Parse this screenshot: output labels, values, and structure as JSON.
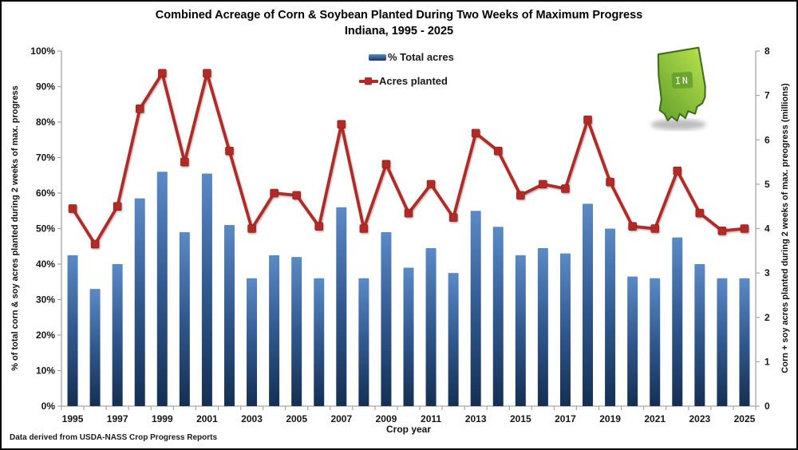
{
  "title": {
    "line1": "Combined Acreage of Corn & Soybean Planted During Two Weeks of Maximum Progress",
    "line2": "Indiana, 1995 - 2025"
  },
  "legend": {
    "bar_label": "% Total acres",
    "line_label": "Acres planted"
  },
  "footer": {
    "source_note": "Data derived from USDA-NASS Crop Progress Reports"
  },
  "state_icon": {
    "label": "IN",
    "fill_light": "#b9e24e",
    "fill_dark": "#66a42d",
    "outline": "#3f701d"
  },
  "chart_data": {
    "type": "bar+line",
    "title": "Combined Acreage of Corn & Soybean Planted During Two Weeks of Maximum Progress — Indiana, 1995 - 2025",
    "xlabel": "Crop year",
    "ylabel_left": "% of total corn & soy acres planted during 2 weeks of max. progress",
    "ylabel_right": "Corn + soy acres planted during 2 weeks of max. preogress (millions)",
    "categories": [
      1995,
      1996,
      1997,
      1998,
      1999,
      2000,
      2001,
      2002,
      2003,
      2004,
      2005,
      2006,
      2007,
      2008,
      2009,
      2010,
      2011,
      2012,
      2013,
      2014,
      2015,
      2016,
      2017,
      2018,
      2019,
      2020,
      2021,
      2022,
      2023,
      2024,
      2025
    ],
    "series": [
      {
        "name": "% Total acres",
        "type": "bar",
        "axis": "left",
        "unit": "percent",
        "values": [
          42.5,
          33,
          40,
          58.5,
          66,
          49,
          65.5,
          51,
          36,
          42.5,
          42,
          36,
          56,
          36,
          49,
          39,
          44.5,
          37.5,
          55,
          50.5,
          42.5,
          44.5,
          43,
          57,
          50,
          36.5,
          36,
          47.5,
          40,
          36,
          36
        ]
      },
      {
        "name": "Acres planted",
        "type": "line",
        "axis": "right",
        "unit": "millions of acres",
        "values": [
          4.45,
          3.65,
          4.5,
          6.7,
          7.5,
          5.5,
          7.5,
          5.75,
          4.0,
          4.8,
          4.75,
          4.05,
          6.35,
          4.0,
          5.45,
          4.35,
          5.0,
          4.25,
          6.15,
          5.75,
          4.75,
          5.0,
          4.9,
          6.45,
          5.05,
          4.05,
          4.0,
          5.3,
          4.35,
          3.95,
          4.0
        ]
      }
    ],
    "ylim_left": [
      0,
      100
    ],
    "ytick_step_left": 10,
    "ytick_suffix_left": "%",
    "ylim_right": [
      0,
      8
    ],
    "ytick_step_right": 1,
    "xtick_label_every": 2,
    "grid": false,
    "legend_position": "top-center",
    "colors": {
      "bar_top": "#5b8ac6",
      "bar_mid": "#31598f",
      "bar_bottom": "#142f52",
      "line": "#b22a25",
      "marker": "#b22a25",
      "axis": "#a6a6a6",
      "text": "#161616"
    }
  }
}
